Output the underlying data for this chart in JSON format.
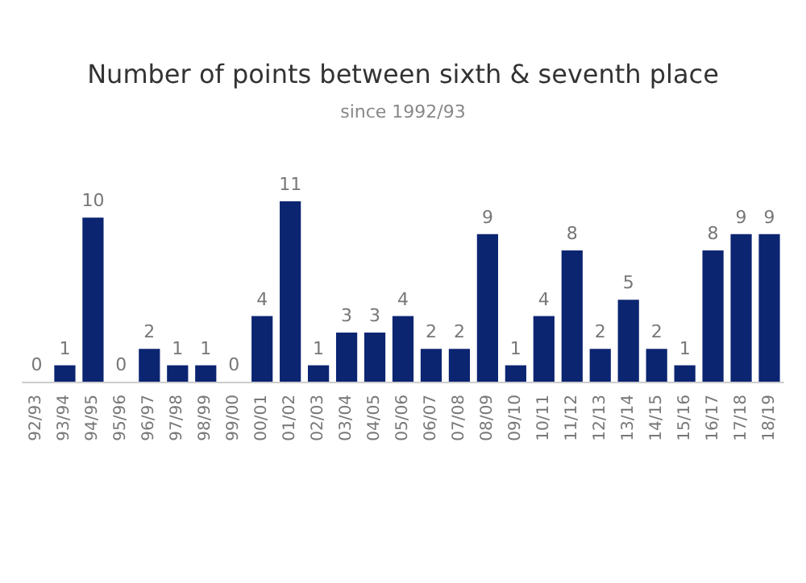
{
  "chart_data": {
    "type": "bar",
    "title": "Number of points between sixth & seventh place",
    "subtitle": "since 1992/93",
    "categories": [
      "92/93",
      "93/94",
      "94/95",
      "95/96",
      "96/97",
      "97/98",
      "98/99",
      "99/00",
      "00/01",
      "01/02",
      "02/03",
      "03/04",
      "04/05",
      "05/06",
      "06/07",
      "07/08",
      "08/09",
      "09/10",
      "10/11",
      "11/12",
      "12/13",
      "13/14",
      "14/15",
      "15/16",
      "16/17",
      "17/18",
      "18/19"
    ],
    "values": [
      0,
      1,
      10,
      0,
      2,
      1,
      1,
      0,
      4,
      11,
      1,
      3,
      3,
      4,
      2,
      2,
      9,
      1,
      4,
      8,
      2,
      5,
      2,
      1,
      8,
      9,
      9
    ],
    "color": "#0c2571",
    "data_labels": true,
    "ylim": [
      0,
      11
    ],
    "tick_labels": "x"
  }
}
